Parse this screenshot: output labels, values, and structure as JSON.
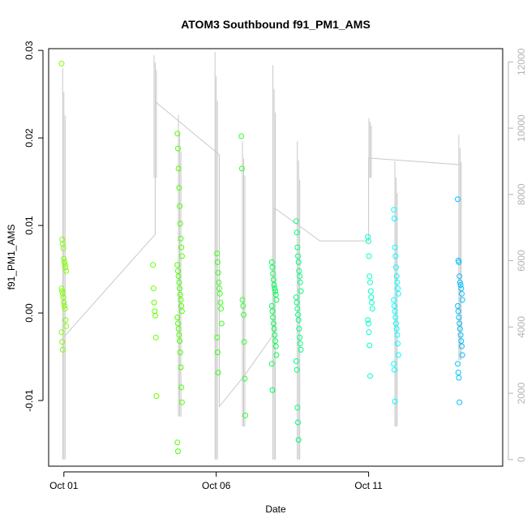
{
  "chart_data": {
    "type": "scatter",
    "title": "ATOM3 Southbound f91_PM1_AMS",
    "xlabel": "Date",
    "ylabel": "f91_PM1_AMS",
    "x_ticks": [
      "Oct 01",
      "Oct 06",
      "Oct 11"
    ],
    "x_tick_days": [
      1,
      6,
      11
    ],
    "xlim": [
      0.5,
      15.4
    ],
    "ylim": [
      -0.0175,
      0.0302
    ],
    "y_ticks": [
      -0.01,
      0.0,
      0.01,
      0.02,
      0.03
    ],
    "y_tick_labels": [
      "-0.01",
      "0.00",
      "0.01",
      "0.02",
      "0.03"
    ],
    "y2lim": [
      -200,
      12400
    ],
    "y2_ticks": [
      0,
      2000,
      4000,
      6000,
      8000,
      10000,
      12000
    ],
    "y2_tick_labels": [
      "0",
      "2000",
      "4000",
      "6000",
      "8000",
      "10000",
      "12000"
    ],
    "grid": false,
    "colors": {
      "altitude_line": "#c8c8c8",
      "right_axis": "#b3b3b3",
      "points_early": "#7fff00",
      "points_mid": "#00ff7f",
      "points_late": "#00bfff"
    },
    "series": [
      {
        "color": "#7fff00",
        "day": 1.0,
        "values": [
          0.0285,
          0.0084,
          0.0079,
          0.0074,
          0.0062,
          0.0058,
          0.0055,
          0.0052,
          0.0048,
          0.0028,
          0.0025,
          0.0022,
          0.0018,
          0.0012,
          0.0008,
          0.0005,
          -0.0008,
          -0.0015,
          -0.0022,
          -0.0033,
          -0.0042
        ]
      },
      {
        "color": "#66ff00",
        "day": 4.0,
        "values": [
          0.0055,
          0.0028,
          0.0012,
          0.0002,
          -0.0003,
          -0.0028,
          -0.0095
        ]
      },
      {
        "color": "#4cff00",
        "day": 4.8,
        "values": [
          0.0205,
          0.0188,
          0.0165,
          0.0143,
          0.0122,
          0.0102,
          0.0085,
          0.0075,
          0.0065,
          0.0055,
          0.0048,
          0.0042,
          0.0035,
          0.0028,
          0.0021,
          0.0015,
          0.0008,
          0.0002,
          -0.0005,
          -0.0012,
          -0.0018,
          -0.0025,
          -0.0032,
          -0.0045,
          -0.0062,
          -0.0085,
          -0.0102,
          -0.0148,
          -0.0158
        ]
      },
      {
        "color": "#3aff1a",
        "day": 6.1,
        "values": [
          0.0068,
          0.0058,
          0.0046,
          0.0035,
          0.0028,
          0.0022,
          0.0012,
          0.0005,
          -0.0012,
          -0.0028,
          -0.0045,
          -0.0068
        ]
      },
      {
        "color": "#30ff30",
        "day": 6.9,
        "values": [
          0.0202,
          0.0165,
          0.0015,
          0.0008,
          -0.0002,
          -0.0033,
          -0.0075,
          -0.0117
        ]
      },
      {
        "color": "#00ff55",
        "day": 7.9,
        "values": [
          0.0058,
          0.0052,
          0.0045,
          0.0038,
          0.0032,
          0.0028,
          0.0025,
          0.0021,
          0.0015,
          0.0008,
          0.0002,
          -0.0005,
          -0.0012,
          -0.0018,
          -0.0025,
          -0.0032,
          -0.0038,
          -0.0048,
          -0.0058,
          -0.0088
        ]
      },
      {
        "color": "#00ff7f",
        "day": 8.7,
        "values": [
          0.0105,
          0.0092,
          0.0075,
          0.0065,
          0.0058,
          0.0048,
          0.0042,
          0.0035,
          0.0025,
          0.0018,
          0.0012,
          0.0005,
          -0.0002,
          -0.0008,
          -0.0018,
          -0.0028,
          -0.0035,
          -0.0042,
          -0.0055,
          -0.0065,
          -0.0108,
          -0.0125,
          -0.0145
        ]
      },
      {
        "color": "#00ffcc",
        "day": 11.05,
        "values": [
          0.0087,
          0.0082,
          0.0065,
          0.0042,
          0.0035,
          0.0025,
          0.0018,
          0.0012,
          0.0005,
          -0.0008,
          -0.0012,
          -0.0022,
          -0.0037,
          -0.0072
        ]
      },
      {
        "color": "#00ffff",
        "day": 11.9,
        "values": [
          0.0118,
          0.0108,
          0.0075,
          0.0065,
          0.0052,
          0.0042,
          0.0035,
          0.0028,
          0.0022,
          0.0015,
          0.0008,
          0.0002,
          -0.0005,
          -0.0012,
          -0.0018,
          -0.0025,
          -0.0035,
          -0.0048,
          -0.0058,
          -0.0065,
          -0.0101
        ]
      },
      {
        "color": "#00bfff",
        "day": 14.0,
        "values": [
          0.013,
          0.006,
          0.0058,
          0.0042,
          0.0035,
          0.0032,
          0.0028,
          0.0022,
          0.0015,
          0.0008,
          0.0002,
          -0.0005,
          -0.0012,
          -0.0018,
          -0.0025,
          -0.0032,
          -0.0038,
          -0.0048,
          -0.0058,
          -0.0068,
          -0.0074,
          -0.0102
        ]
      }
    ],
    "altitude_spikes": [
      {
        "day": 1.0,
        "min": 0,
        "max": 11800
      },
      {
        "day": 4.0,
        "min": 8500,
        "max": 12200
      },
      {
        "day": 4.8,
        "min": 1300,
        "max": 10400
      },
      {
        "day": 6.0,
        "min": 0,
        "max": 12300
      },
      {
        "day": 6.9,
        "min": 1000,
        "max": 9600
      },
      {
        "day": 7.9,
        "min": 0,
        "max": 11900
      },
      {
        "day": 8.7,
        "min": 0,
        "max": 9600
      },
      {
        "day": 11.05,
        "min": 8500,
        "max": 10300
      },
      {
        "day": 11.9,
        "min": 1000,
        "max": 9000
      },
      {
        "day": 14.0,
        "min": 3000,
        "max": 9800
      }
    ],
    "altitude_track": [
      [
        1.0,
        3700
      ],
      [
        4.0,
        6800
      ],
      [
        4.0,
        10800
      ],
      [
        6.1,
        9200
      ],
      [
        6.1,
        1600
      ],
      [
        6.9,
        2500
      ],
      [
        7.9,
        3800
      ],
      [
        7.9,
        7600
      ],
      [
        9.4,
        6600
      ],
      [
        11.0,
        6600
      ],
      [
        11.0,
        9100
      ],
      [
        14.0,
        8900
      ]
    ]
  }
}
